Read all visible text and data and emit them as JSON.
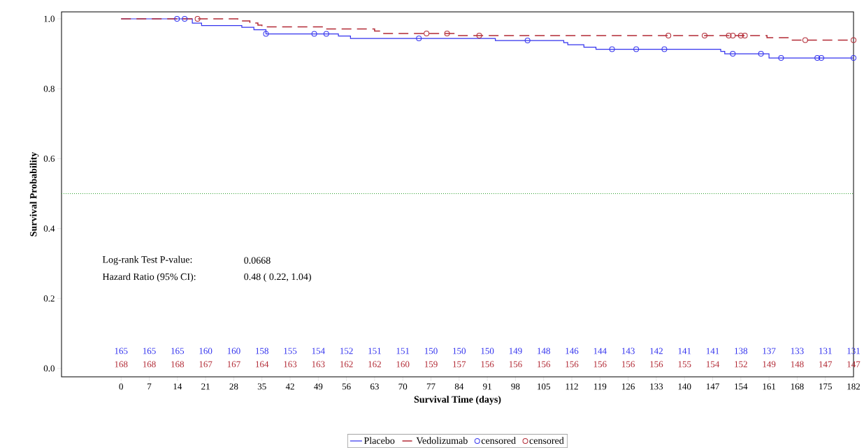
{
  "chart_data": {
    "type": "step",
    "xlabel": "Survival Time (days)",
    "ylabel": "Survival Probability",
    "xlim": [
      -14.8,
      182
    ],
    "ylim": [
      -0.024,
      1.02
    ],
    "xticks": [
      0,
      7,
      14,
      21,
      28,
      35,
      42,
      49,
      56,
      63,
      70,
      77,
      84,
      91,
      98,
      105,
      112,
      119,
      126,
      133,
      140,
      147,
      154,
      161,
      168,
      175,
      182
    ],
    "yticks": [
      {
        "value": 0,
        "label": "0.0"
      },
      {
        "value": 0.2,
        "label": "0.2"
      },
      {
        "value": 0.4,
        "label": "0.4"
      },
      {
        "value": 0.6,
        "label": "0.6"
      },
      {
        "value": 0.8,
        "label": "0.8"
      },
      {
        "value": 1.0,
        "label": "1.0"
      }
    ],
    "grid": false,
    "legend": "bottom",
    "ref_lines": [
      {
        "axis": "y",
        "value": 0.5,
        "color": "#2ca02c",
        "line_style": "dotted"
      }
    ],
    "series": [
      {
        "name": "Placebo",
        "color": "#3333ee",
        "line_style": "solid",
        "x": [
          0,
          17.7,
          20,
          30,
          33,
          36,
          54,
          57,
          93,
          110,
          111,
          115,
          118,
          149,
          150,
          161,
          182
        ],
        "values": [
          1.0,
          0.988,
          0.981,
          0.976,
          0.969,
          0.957,
          0.951,
          0.944,
          0.938,
          0.932,
          0.926,
          0.919,
          0.913,
          0.907,
          0.9,
          0.888,
          0.888
        ]
      },
      {
        "name": "Vedolizumab",
        "color": "#b22a35",
        "line_style": "dashed",
        "x": [
          0,
          29,
          32,
          34,
          35,
          50,
          63,
          65,
          83,
          160.5,
          166,
          182
        ],
        "values": [
          1.0,
          0.994,
          0.988,
          0.982,
          0.977,
          0.971,
          0.965,
          0.958,
          0.952,
          0.946,
          0.939,
          0.939
        ]
      },
      {
        "name": "censored",
        "type": "scatter",
        "marker": "circle",
        "color": "#3333ee",
        "x": [
          13.9,
          15.8,
          36,
          48,
          51,
          74,
          101,
          122,
          128,
          135,
          152,
          159,
          164,
          173,
          174,
          182
        ],
        "values": [
          1.0,
          1.0,
          0.957,
          0.957,
          0.957,
          0.944,
          0.938,
          0.913,
          0.913,
          0.913,
          0.9,
          0.9,
          0.888,
          0.888,
          0.888,
          0.888
        ]
      },
      {
        "name": "censored",
        "type": "scatter",
        "marker": "circle",
        "color": "#b22a35",
        "x": [
          19,
          75.9,
          81,
          89,
          136,
          145,
          151,
          152,
          154,
          155,
          170,
          182
        ],
        "values": [
          1.0,
          0.958,
          0.958,
          0.952,
          0.952,
          0.952,
          0.952,
          0.952,
          0.952,
          0.952,
          0.939,
          0.939
        ]
      }
    ],
    "annotations": [
      "Log-rank Test P-value:",
      "0.0668",
      "Hazard Ratio (95% CI):",
      "0.48 (  0.22,   1.04)",
      "165",
      "165",
      "165",
      "160",
      "160",
      "158",
      "155",
      "154",
      "152",
      "151",
      "151",
      "150",
      "150",
      "150",
      "149",
      "148",
      "146",
      "144",
      "143",
      "142",
      "141",
      "141",
      "138",
      "137",
      "133",
      "131",
      "131",
      "168",
      "168",
      "168",
      "167",
      "167",
      "164",
      "163",
      "163",
      "162",
      "162",
      "160",
      "159",
      "157",
      "156",
      "156",
      "156",
      "156",
      "156",
      "156",
      "156",
      "155",
      "154",
      "152",
      "149",
      "148",
      "147",
      "147"
    ]
  }
}
